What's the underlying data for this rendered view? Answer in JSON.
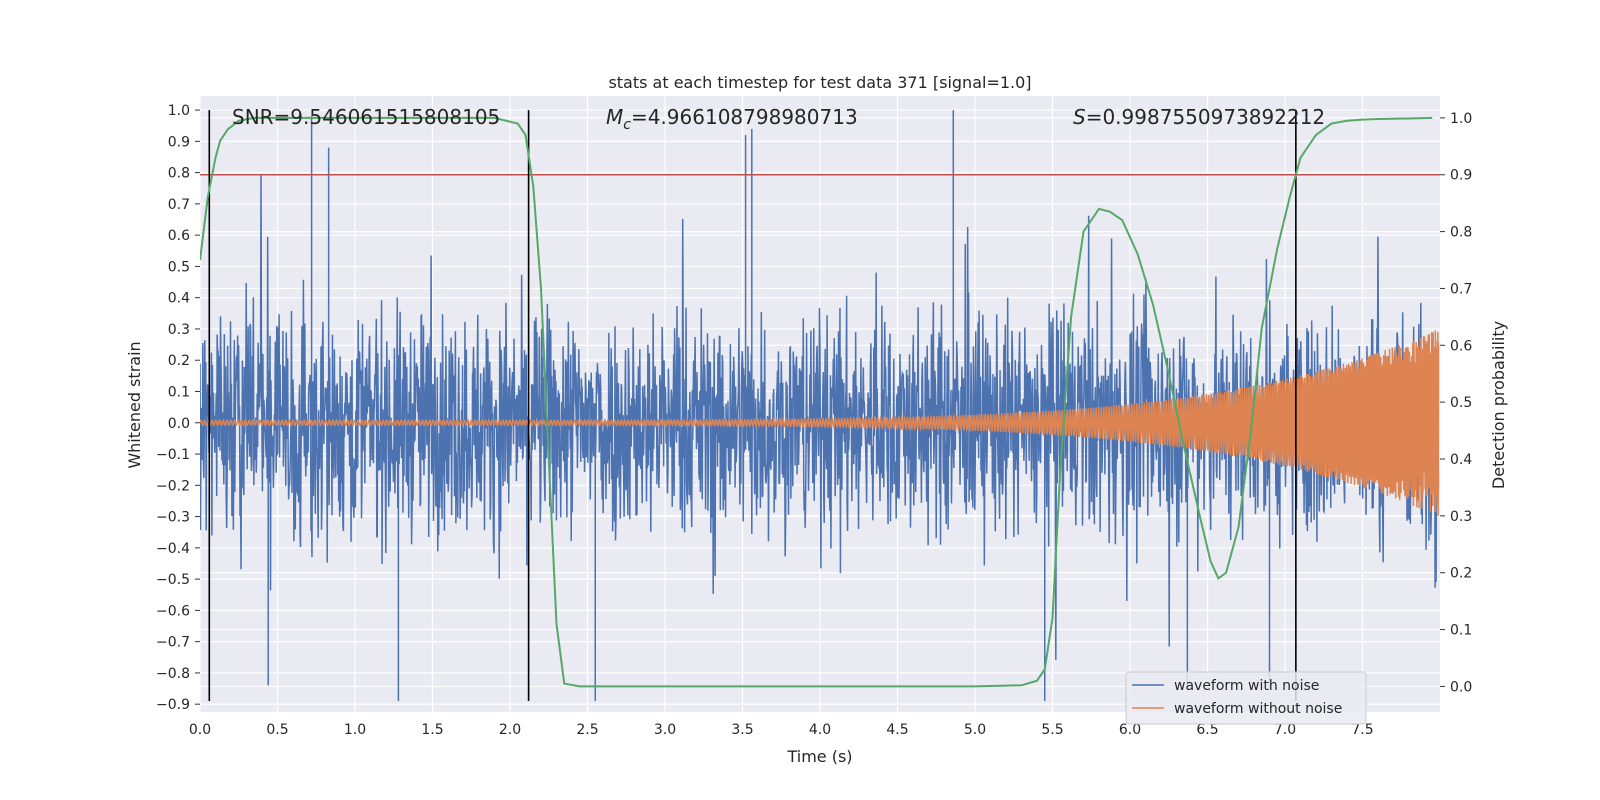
{
  "chart_data": {
    "type": "line",
    "title": "stats at each timestep for test data 371 [signal=1.0]",
    "xlabel": "Time (s)",
    "ylabel_left": "Whitened strain",
    "ylabel_right": "Detection probability",
    "xlim": [
      0.0,
      8.0
    ],
    "ylim_left": [
      -0.925,
      1.045
    ],
    "ylim_right": [
      -0.045,
      1.0385
    ],
    "xticks": [
      "0.0",
      "0.5",
      "1.0",
      "1.5",
      "2.0",
      "2.5",
      "3.0",
      "3.5",
      "4.0",
      "4.5",
      "5.0",
      "5.5",
      "6.0",
      "6.5",
      "7.0",
      "7.5"
    ],
    "yticks_left": [
      "1.0",
      "0.9",
      "0.8",
      "0.7",
      "0.6",
      "0.5",
      "0.4",
      "0.3",
      "0.2",
      "0.1",
      "0.0",
      "−0.1",
      "−0.2",
      "−0.3",
      "−0.4",
      "−0.5",
      "−0.6",
      "−0.7",
      "−0.8",
      "−0.9"
    ],
    "yticks_right": [
      "1.0",
      "0.9",
      "0.8",
      "0.7",
      "0.6",
      "0.5",
      "0.4",
      "0.3",
      "0.2",
      "0.1",
      "0.0"
    ],
    "annotations": {
      "snr": "SNR=9.546061515808105",
      "mc_symbol": "M",
      "mc_sub": "c",
      "mc_value": "=4.966108798980713",
      "s_symbol": "S",
      "s_value": "=0.9987550973892212"
    },
    "legend": {
      "position": "lower right",
      "entries": [
        "waveform with noise",
        "waveform without noise"
      ]
    },
    "colors": {
      "noisy": "#4c72b0",
      "clean": "#dd8452",
      "probability": "#55a868",
      "threshold": "#c44e52",
      "markers": "#000000",
      "axes_bg": "#eaeaf2",
      "grid": "#ffffff"
    },
    "threshold_right_value": 0.9,
    "marker_times": [
      0.06,
      2.12,
      7.07
    ],
    "series": [
      {
        "name": "waveform with noise",
        "x_range": [
          0.0,
          7.99
        ],
        "y_min": -0.89,
        "y_max": 1.0,
        "typical_abs": 0.25,
        "spikes": [
          {
            "x": 0.72,
            "y": 0.98
          },
          {
            "x": 0.83,
            "y": 0.88
          },
          {
            "x": 3.52,
            "y": 0.92
          },
          {
            "x": 3.56,
            "y": 0.94
          },
          {
            "x": 4.86,
            "y": 1.0
          },
          {
            "x": 1.28,
            "y": -0.89
          },
          {
            "x": 2.55,
            "y": -0.89
          },
          {
            "x": 5.45,
            "y": -0.89
          },
          {
            "x": 0.44,
            "y": -0.84
          },
          {
            "x": 6.37,
            "y": -0.85
          },
          {
            "x": 6.9,
            "y": -0.85
          }
        ]
      },
      {
        "name": "waveform without noise",
        "x_range": [
          0.0,
          7.99
        ],
        "amplitude_start": 0.008,
        "amplitude_end": 0.3
      },
      {
        "name": "detection probability",
        "axis": "right",
        "x": [
          0.0,
          0.05,
          0.1,
          0.13,
          0.18,
          0.25,
          0.35,
          0.5,
          1.0,
          1.5,
          1.9,
          2.05,
          2.1,
          2.15,
          2.2,
          2.25,
          2.3,
          2.35,
          2.45,
          3.0,
          4.0,
          5.0,
          5.3,
          5.4,
          5.45,
          5.5,
          5.55,
          5.62,
          5.7,
          5.8,
          5.87,
          5.95,
          6.05,
          6.15,
          6.25,
          6.35,
          6.45,
          6.52,
          6.57,
          6.62,
          6.7,
          6.78,
          6.85,
          6.95,
          7.03,
          7.1,
          7.2,
          7.3,
          7.4,
          7.5,
          7.6,
          7.8,
          7.95
        ],
        "y": [
          0.75,
          0.86,
          0.93,
          0.96,
          0.98,
          0.995,
          1.0,
          1.0,
          1.0,
          1.0,
          1.0,
          0.99,
          0.97,
          0.88,
          0.7,
          0.4,
          0.11,
          0.005,
          0.0,
          0.0,
          0.0,
          0.0,
          0.002,
          0.01,
          0.03,
          0.12,
          0.38,
          0.65,
          0.8,
          0.84,
          0.835,
          0.82,
          0.76,
          0.67,
          0.55,
          0.42,
          0.3,
          0.22,
          0.19,
          0.2,
          0.28,
          0.45,
          0.63,
          0.77,
          0.86,
          0.93,
          0.97,
          0.99,
          0.995,
          0.997,
          0.998,
          0.999,
          1.0
        ]
      }
    ]
  }
}
